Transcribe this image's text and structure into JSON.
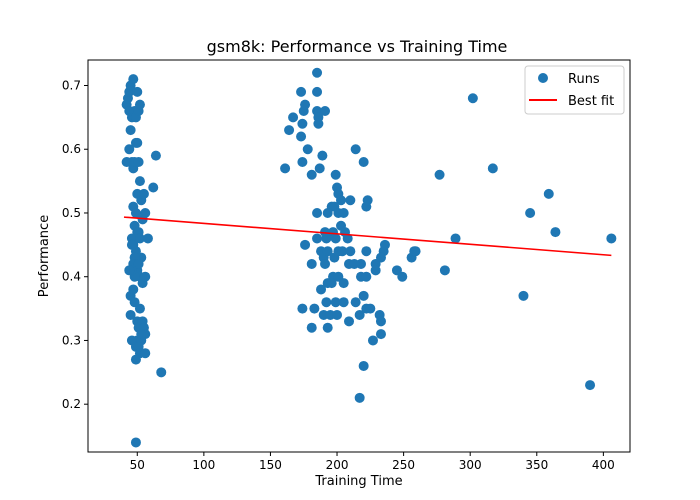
{
  "chart_data": {
    "type": "scatter",
    "title": "gsm8k: Performance vs Training Time",
    "xlabel": "Training Time",
    "ylabel": "Performance",
    "xlim": [
      13,
      420
    ],
    "ylim": [
      0.125,
      0.74
    ],
    "xticks": [
      50,
      100,
      150,
      200,
      250,
      300,
      350,
      400
    ],
    "yticks": [
      0.2,
      0.3,
      0.4,
      0.5,
      0.6,
      0.7
    ],
    "grid": false,
    "legend": {
      "placement": "top-right",
      "entries": [
        "Runs",
        "Best fit"
      ]
    },
    "colors": {
      "runs": "#1f77b4",
      "fit": "#ff0000"
    },
    "series": [
      {
        "name": "Runs",
        "points": [
          [
            42,
            0.67
          ],
          [
            43,
            0.68
          ],
          [
            44,
            0.66
          ],
          [
            44,
            0.69
          ],
          [
            45,
            0.7
          ],
          [
            46,
            0.65
          ],
          [
            47,
            0.71
          ],
          [
            48,
            0.66
          ],
          [
            49,
            0.65
          ],
          [
            50,
            0.69
          ],
          [
            51,
            0.66
          ],
          [
            52,
            0.67
          ],
          [
            45,
            0.63
          ],
          [
            46,
            0.58
          ],
          [
            42,
            0.58
          ],
          [
            44,
            0.6
          ],
          [
            47,
            0.57
          ],
          [
            49,
            0.61
          ],
          [
            50,
            0.61
          ],
          [
            48,
            0.58
          ],
          [
            51,
            0.58
          ],
          [
            52,
            0.55
          ],
          [
            50,
            0.53
          ],
          [
            47,
            0.51
          ],
          [
            49,
            0.5
          ],
          [
            54,
            0.49
          ],
          [
            53,
            0.52
          ],
          [
            55,
            0.53
          ],
          [
            56,
            0.5
          ],
          [
            48,
            0.48
          ],
          [
            50,
            0.47
          ],
          [
            46,
            0.46
          ],
          [
            47,
            0.45
          ],
          [
            49,
            0.44
          ],
          [
            51,
            0.47
          ],
          [
            52,
            0.46
          ],
          [
            53,
            0.43
          ],
          [
            48,
            0.43
          ],
          [
            47,
            0.42
          ],
          [
            50,
            0.41
          ],
          [
            51,
            0.42
          ],
          [
            52,
            0.4
          ],
          [
            48,
            0.4
          ],
          [
            46,
            0.41
          ],
          [
            54,
            0.39
          ],
          [
            56,
            0.4
          ],
          [
            58,
            0.46
          ],
          [
            62,
            0.54
          ],
          [
            64,
            0.59
          ],
          [
            45,
            0.37
          ],
          [
            47,
            0.38
          ],
          [
            48,
            0.36
          ],
          [
            50,
            0.33
          ],
          [
            51,
            0.32
          ],
          [
            52,
            0.35
          ],
          [
            54,
            0.33
          ],
          [
            55,
            0.32
          ],
          [
            56,
            0.31
          ],
          [
            53,
            0.3
          ],
          [
            50,
            0.3
          ],
          [
            46,
            0.3
          ],
          [
            49,
            0.29
          ],
          [
            51,
            0.29
          ],
          [
            52,
            0.28
          ],
          [
            56,
            0.28
          ],
          [
            49,
            0.27
          ],
          [
            68,
            0.25
          ],
          [
            49,
            0.14
          ],
          [
            45,
            0.34
          ],
          [
            44,
            0.41
          ],
          [
            46,
            0.45
          ],
          [
            53,
            0.31
          ],
          [
            161,
            0.57
          ],
          [
            164,
            0.63
          ],
          [
            167,
            0.65
          ],
          [
            173,
            0.69
          ],
          [
            174,
            0.64
          ],
          [
            175,
            0.66
          ],
          [
            176,
            0.67
          ],
          [
            173,
            0.62
          ],
          [
            174,
            0.58
          ],
          [
            178,
            0.6
          ],
          [
            185,
            0.72
          ],
          [
            185,
            0.69
          ],
          [
            185,
            0.66
          ],
          [
            186,
            0.65
          ],
          [
            186,
            0.64
          ],
          [
            191,
            0.66
          ],
          [
            189,
            0.59
          ],
          [
            181,
            0.56
          ],
          [
            187,
            0.57
          ],
          [
            199,
            0.56
          ],
          [
            200,
            0.54
          ],
          [
            201,
            0.53
          ],
          [
            203,
            0.52
          ],
          [
            196,
            0.51
          ],
          [
            198,
            0.51
          ],
          [
            201,
            0.5
          ],
          [
            205,
            0.5
          ],
          [
            210,
            0.52
          ],
          [
            214,
            0.6
          ],
          [
            220,
            0.58
          ],
          [
            222,
            0.51
          ],
          [
            223,
            0.52
          ],
          [
            193,
            0.5
          ],
          [
            185,
            0.5
          ],
          [
            197,
            0.47
          ],
          [
            192,
            0.46
          ],
          [
            191,
            0.47
          ],
          [
            199,
            0.46
          ],
          [
            203,
            0.48
          ],
          [
            206,
            0.47
          ],
          [
            208,
            0.46
          ],
          [
            185,
            0.46
          ],
          [
            188,
            0.44
          ],
          [
            190,
            0.43
          ],
          [
            193,
            0.44
          ],
          [
            198,
            0.43
          ],
          [
            201,
            0.44
          ],
          [
            204,
            0.44
          ],
          [
            210,
            0.44
          ],
          [
            218,
            0.42
          ],
          [
            222,
            0.44
          ],
          [
            229,
            0.42
          ],
          [
            235,
            0.44
          ],
          [
            233,
            0.43
          ],
          [
            236,
            0.45
          ],
          [
            181,
            0.42
          ],
          [
            176,
            0.45
          ],
          [
            191,
            0.42
          ],
          [
            197,
            0.4
          ],
          [
            193,
            0.39
          ],
          [
            196,
            0.39
          ],
          [
            201,
            0.4
          ],
          [
            205,
            0.39
          ],
          [
            209,
            0.42
          ],
          [
            213,
            0.42
          ],
          [
            218,
            0.4
          ],
          [
            222,
            0.4
          ],
          [
            229,
            0.41
          ],
          [
            245,
            0.41
          ],
          [
            249,
            0.4
          ],
          [
            256,
            0.43
          ],
          [
            259,
            0.44
          ],
          [
            258,
            0.44
          ],
          [
            188,
            0.38
          ],
          [
            192,
            0.36
          ],
          [
            199,
            0.36
          ],
          [
            205,
            0.36
          ],
          [
            214,
            0.36
          ],
          [
            217,
            0.34
          ],
          [
            220,
            0.37
          ],
          [
            174,
            0.35
          ],
          [
            183,
            0.35
          ],
          [
            190,
            0.34
          ],
          [
            195,
            0.34
          ],
          [
            200,
            0.34
          ],
          [
            209,
            0.33
          ],
          [
            222,
            0.35
          ],
          [
            225,
            0.35
          ],
          [
            232,
            0.34
          ],
          [
            233,
            0.33
          ],
          [
            233,
            0.31
          ],
          [
            227,
            0.3
          ],
          [
            181,
            0.32
          ],
          [
            193,
            0.32
          ],
          [
            220,
            0.26
          ],
          [
            217,
            0.21
          ],
          [
            277,
            0.56
          ],
          [
            289,
            0.46
          ],
          [
            281,
            0.41
          ],
          [
            302,
            0.68
          ],
          [
            317,
            0.57
          ],
          [
            340,
            0.37
          ],
          [
            345,
            0.5
          ],
          [
            359,
            0.53
          ],
          [
            364,
            0.47
          ],
          [
            390,
            0.23
          ],
          [
            406,
            0.46
          ]
        ]
      },
      {
        "name": "Best fit",
        "line": [
          [
            40,
            0.4935
          ],
          [
            406,
            0.4335
          ]
        ]
      }
    ]
  }
}
